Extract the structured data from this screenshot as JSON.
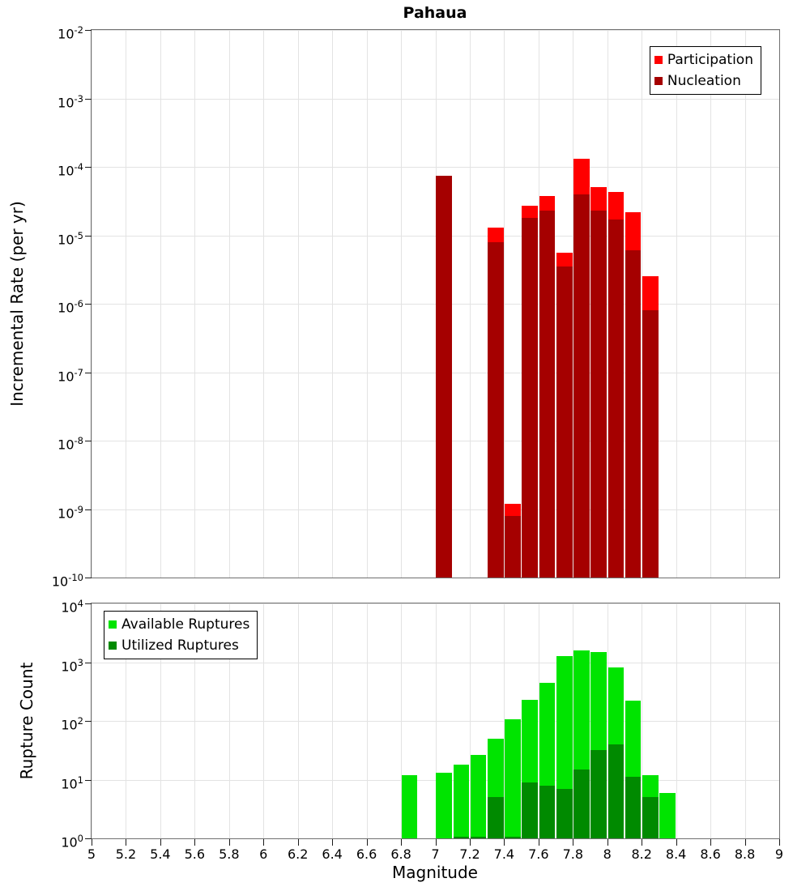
{
  "title": "Pahaua",
  "xaxis": {
    "label": "Magnitude",
    "lim": [
      5,
      9
    ],
    "ticks": [
      5,
      5.2,
      5.4,
      5.6,
      5.8,
      6,
      6.2,
      6.4,
      6.6,
      6.8,
      7,
      7.2,
      7.4,
      7.6,
      7.8,
      8,
      8.2,
      8.4,
      8.6,
      8.8,
      9
    ]
  },
  "chart_data": [
    {
      "name": "incremental-rate-mfd",
      "type": "bar",
      "title": "Pahaua",
      "ylabel": "Incremental Rate (per yr)",
      "yscale": "log",
      "ylim": [
        1e-10,
        0.01
      ],
      "ytick_exponents": [
        -2,
        -3,
        -4,
        -5,
        -6,
        -7,
        -8,
        -9,
        -10
      ],
      "xlim": [
        5,
        9
      ],
      "bin_width": 0.1,
      "grid": true,
      "legend_position": "top-right",
      "legend": {
        "entries": [
          {
            "label": "Participation",
            "color": "#ff0000"
          },
          {
            "label": "Nucleation",
            "color": "#a50000"
          }
        ]
      },
      "categories": [
        7.05,
        7.35,
        7.45,
        7.55,
        7.65,
        7.75,
        7.85,
        7.95,
        8.05,
        8.15,
        8.25
      ],
      "series": [
        {
          "name": "Participation",
          "color": "#ff0000",
          "values": [
            7.5e-05,
            1.3e-05,
            1.2e-09,
            2.7e-05,
            3.8e-05,
            5.5e-06,
            0.00013,
            5e-05,
            4.3e-05,
            2.2e-05,
            2.5e-06
          ]
        },
        {
          "name": "Nucleation",
          "color": "#a50000",
          "values": [
            7.5e-05,
            8e-06,
            8e-10,
            1.8e-05,
            2.3e-05,
            3.5e-06,
            4e-05,
            2.3e-05,
            1.7e-05,
            6e-06,
            8e-07
          ]
        }
      ]
    },
    {
      "name": "rupture-count",
      "type": "bar",
      "ylabel": "Rupture Count",
      "yscale": "log",
      "ylim": [
        1,
        10000
      ],
      "ytick_exponents": [
        4,
        3,
        2,
        1,
        0
      ],
      "xlim": [
        5,
        9
      ],
      "bin_width": 0.1,
      "grid": true,
      "legend_position": "top-left",
      "legend": {
        "entries": [
          {
            "label": "Available Ruptures",
            "color": "#00e400"
          },
          {
            "label": "Utilized Ruptures",
            "color": "#008a00"
          }
        ]
      },
      "categories": [
        6.85,
        7.05,
        7.15,
        7.25,
        7.35,
        7.45,
        7.55,
        7.65,
        7.75,
        7.85,
        7.95,
        8.05,
        8.15,
        8.25,
        8.35
      ],
      "series": [
        {
          "name": "Available Ruptures",
          "color": "#00e400",
          "values": [
            12,
            13,
            18,
            26,
            50,
            105,
            230,
            450,
            1250,
            1600,
            1500,
            820,
            220,
            12,
            6
          ]
        },
        {
          "name": "Utilized Ruptures",
          "color": "#008a00",
          "values": [
            0,
            0,
            1,
            1,
            5,
            1,
            9,
            8,
            7,
            15,
            32,
            40,
            11,
            5,
            0
          ]
        }
      ]
    }
  ]
}
